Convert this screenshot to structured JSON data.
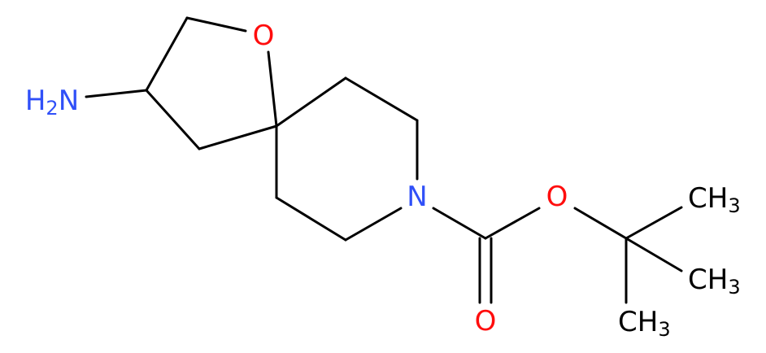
{
  "atoms": [
    {
      "label": "H2N"
    },
    {
      "label": "O"
    },
    {
      "label": "N"
    },
    {
      "label": "O"
    },
    {
      "label": "O"
    },
    {
      "label": "CH3"
    },
    {
      "label": "CH3"
    },
    {
      "label": "CH3"
    }
  ]
}
